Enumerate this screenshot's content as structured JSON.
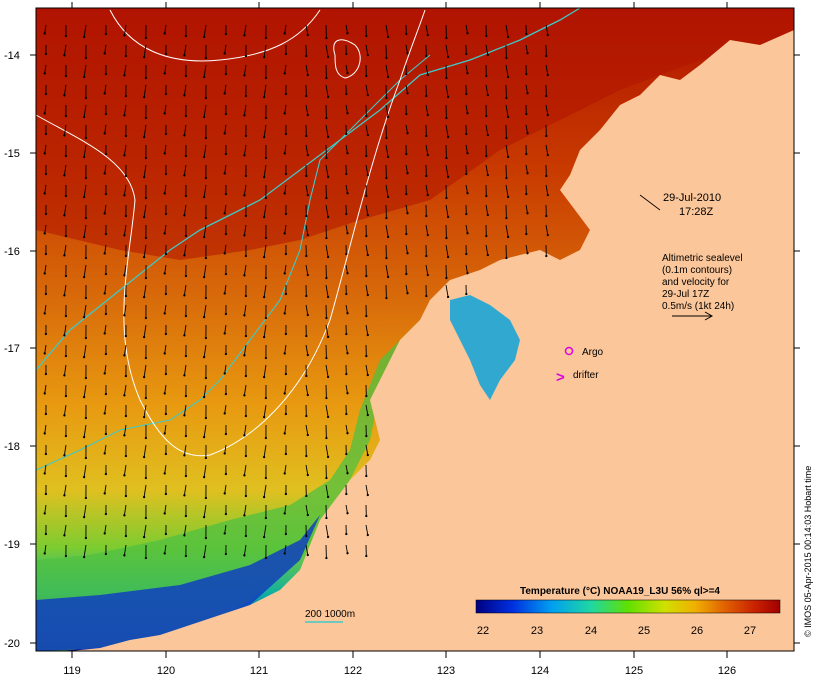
{
  "map": {
    "timestamp_date": "29-Jul-2010",
    "timestamp_time": "17:28Z",
    "altimetry_note": [
      "Altimetric sealevel",
      "(0.1m contours)",
      "and velocity for",
      "29-Jul 17Z",
      "0.5m/s (1kt 24h)"
    ],
    "argo_label": "Argo",
    "drifter_label": "drifter",
    "drifter_symbol": ">",
    "isobath_label": "200  1000m",
    "colorbar_title": "Temperature (°C) NOAA19_L3U 56% ql>=4",
    "colorbar_ticks": [
      "22",
      "23",
      "24",
      "25",
      "26",
      "27"
    ],
    "credit": "© IMOS 05-Apr-2015 00:14:03 Hobart time",
    "lon_ticks": [
      "119",
      "120",
      "121",
      "122",
      "123",
      "124",
      "125",
      "126"
    ],
    "lat_ticks": [
      "-14",
      "-15",
      "-16",
      "-17",
      "-18",
      "-19",
      "-20"
    ],
    "colors": {
      "land": "#fbc79a",
      "argo": "#e000e0",
      "drifter": "#e000e0",
      "isobath": "#40c8c8",
      "contour": "#ffffff"
    }
  }
}
